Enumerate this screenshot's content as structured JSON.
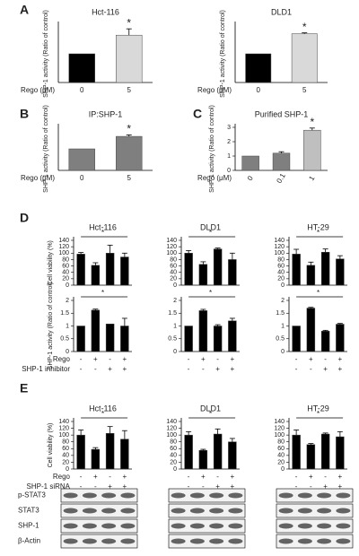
{
  "panels": [
    "A",
    "B",
    "C",
    "D",
    "E"
  ],
  "condition_labels": {
    "D": [
      "Rego",
      "SHP-1 inhibitor"
    ],
    "E": [
      "Rego",
      "SHP-1 siRNA"
    ]
  },
  "blot_labels": [
    "p-STAT3",
    "STAT3",
    "SHP-1",
    "β-Actin"
  ],
  "chart_data": [
    {
      "type": "bar",
      "title": "Hct-116",
      "ylabel": "SHP-1 activity (Ratio of control)",
      "xlabel": "Rego (μM)",
      "categories": [
        "0",
        "5"
      ],
      "values": [
        1,
        1.65
      ],
      "errors": [
        0,
        0.22
      ],
      "colors": [
        "#000000",
        "#d9d9d9"
      ],
      "ylim": [
        0,
        2
      ],
      "annotation": "*"
    },
    {
      "type": "bar",
      "title": "DLD1",
      "ylabel": "SHP-1 activity (Ratio of control)",
      "xlabel": "Rego (μM)",
      "categories": [
        "0",
        "5"
      ],
      "values": [
        1,
        1.7
      ],
      "errors": [
        0,
        0.03
      ],
      "colors": [
        "#000000",
        "#d9d9d9"
      ],
      "ylim": [
        0,
        2
      ],
      "annotation": "*"
    },
    {
      "type": "bar",
      "title": "IP:SHP-1",
      "ylabel": "SHP-1 activity (Ratio of control)",
      "xlabel": "Rego (μM)",
      "categories": [
        "0",
        "5"
      ],
      "values": [
        1,
        1.58
      ],
      "errors": [
        0,
        0.07
      ],
      "colors": [
        "#7f7f7f",
        "#7f7f7f"
      ],
      "ylim": [
        0,
        2
      ],
      "annotation": "*"
    },
    {
      "type": "bar",
      "title": "Purified SHP-1",
      "ylabel": "SHP-1 activity (Ratio of control)",
      "xlabel": "Rego (μM)",
      "categories": [
        "0",
        "0.1",
        "1"
      ],
      "values": [
        1,
        1.2,
        2.8
      ],
      "errors": [
        0,
        0.1,
        0.15
      ],
      "colors": [
        "#7f7f7f",
        "#7f7f7f",
        "#bfbfbf"
      ],
      "ylim": [
        0,
        3
      ],
      "yticks": [
        0,
        1,
        2,
        3
      ],
      "annotation": "*"
    },
    {
      "type": "bar",
      "title": "Hct-116",
      "ylabel": "Cell viability (%)",
      "values": [
        97,
        62,
        100,
        88
      ],
      "errors": [
        5,
        8,
        25,
        12
      ],
      "colors": [
        "#000000",
        "#000000",
        "#000000",
        "#000000"
      ],
      "ylim": [
        0,
        140
      ],
      "yticks": [
        0,
        20,
        40,
        60,
        80,
        100,
        120,
        140
      ],
      "annotation": "*"
    },
    {
      "type": "bar",
      "title": "DLD1",
      "values": [
        100,
        65,
        113,
        80
      ],
      "errors": [
        8,
        8,
        3,
        20
      ],
      "colors": [
        "#000000",
        "#000000",
        "#000000",
        "#000000"
      ],
      "ylim": [
        0,
        140
      ],
      "yticks": [
        0,
        20,
        40,
        60,
        80,
        100,
        120,
        140
      ],
      "annotation": "*"
    },
    {
      "type": "bar",
      "title": "HT-29",
      "values": [
        97,
        62,
        103,
        82
      ],
      "errors": [
        15,
        10,
        10,
        10
      ],
      "colors": [
        "#000000",
        "#000000",
        "#000000",
        "#000000"
      ],
      "ylim": [
        0,
        140
      ],
      "yticks": [
        0,
        20,
        40,
        60,
        80,
        100,
        120,
        140
      ],
      "annotation": "*"
    },
    {
      "type": "bar",
      "ylabel": "SHP-1 activity (Ratio of control)",
      "values": [
        1,
        1.62,
        1.08,
        1.0
      ],
      "errors": [
        0,
        0.04,
        0,
        0.3
      ],
      "colors": [
        "#000000",
        "#000000",
        "#000000",
        "#000000"
      ],
      "ylim": [
        0,
        2
      ],
      "yticks": [
        0,
        0.5,
        1,
        1.5,
        2
      ],
      "annotation": "*",
      "conditions": [
        [
          "-",
          "+",
          "-",
          "+"
        ],
        [
          "-",
          "-",
          "+",
          "+"
        ]
      ]
    },
    {
      "type": "bar",
      "values": [
        1,
        1.6,
        1.0,
        1.2
      ],
      "errors": [
        0,
        0.05,
        0.05,
        0.1
      ],
      "colors": [
        "#000000",
        "#000000",
        "#000000",
        "#000000"
      ],
      "ylim": [
        0,
        2
      ],
      "yticks": [
        0,
        0.5,
        1,
        1.5,
        2
      ],
      "annotation": "*",
      "conditions": [
        [
          "-",
          "+",
          "-",
          "+"
        ],
        [
          "-",
          "-",
          "+",
          "+"
        ]
      ]
    },
    {
      "type": "bar",
      "values": [
        1,
        1.7,
        0.8,
        1.07
      ],
      "errors": [
        0,
        0.03,
        0.03,
        0.03
      ],
      "colors": [
        "#000000",
        "#000000",
        "#000000",
        "#000000"
      ],
      "ylim": [
        0,
        2
      ],
      "yticks": [
        0,
        0.5,
        1,
        1.5,
        2
      ],
      "annotation": "*",
      "conditions": [
        [
          "-",
          "+",
          "-",
          "+"
        ],
        [
          "-",
          "-",
          "+",
          "+"
        ]
      ]
    },
    {
      "type": "bar",
      "title": "Hct-116",
      "ylabel": "Cell viability (%)",
      "values": [
        100,
        58,
        105,
        88
      ],
      "errors": [
        15,
        5,
        20,
        25
      ],
      "colors": [
        "#000000",
        "#000000",
        "#000000",
        "#000000"
      ],
      "ylim": [
        0,
        140
      ],
      "yticks": [
        0,
        20,
        40,
        60,
        80,
        100,
        120,
        140
      ],
      "annotation": "*",
      "conditions": [
        [
          "-",
          "+",
          "-",
          "+"
        ],
        [
          "-",
          "-",
          "+",
          "+"
        ]
      ]
    },
    {
      "type": "bar",
      "title": "DLD1",
      "values": [
        100,
        55,
        103,
        80
      ],
      "errors": [
        10,
        3,
        15,
        10
      ],
      "colors": [
        "#000000",
        "#000000",
        "#000000",
        "#000000"
      ],
      "ylim": [
        0,
        140
      ],
      "yticks": [
        0,
        20,
        40,
        60,
        80,
        100,
        120,
        140
      ],
      "annotation": "*",
      "conditions": [
        [
          "-",
          "+",
          "-",
          "+"
        ],
        [
          "-",
          "-",
          "+",
          "+"
        ]
      ]
    },
    {
      "type": "bar",
      "title": "HT-29",
      "values": [
        100,
        72,
        103,
        95
      ],
      "errors": [
        15,
        3,
        3,
        15
      ],
      "colors": [
        "#000000",
        "#000000",
        "#000000",
        "#000000"
      ],
      "ylim": [
        0,
        140
      ],
      "yticks": [
        0,
        20,
        40,
        60,
        80,
        100,
        120,
        140
      ],
      "annotation": "*",
      "conditions": [
        [
          "-",
          "+",
          "-",
          "+"
        ],
        [
          "-",
          "-",
          "+",
          "+"
        ]
      ]
    }
  ]
}
